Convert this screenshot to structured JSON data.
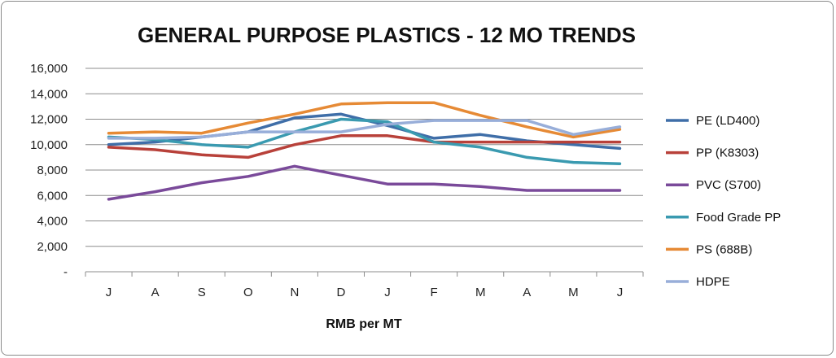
{
  "chart_data": {
    "type": "line",
    "title": "GENERAL PURPOSE PLASTICS - 12 MO TRENDS",
    "xlabel": "RMB per MT",
    "ylabel": "",
    "categories": [
      "J",
      "A",
      "S",
      "O",
      "N",
      "D",
      "J",
      "F",
      "M",
      "A",
      "M",
      "J"
    ],
    "ylim": [
      0,
      16000
    ],
    "yticks": [
      0,
      2000,
      4000,
      6000,
      8000,
      10000,
      12000,
      14000,
      16000
    ],
    "ytick_labels": [
      "-",
      "2,000",
      "4,000",
      "6,000",
      "8,000",
      "10,000",
      "12,000",
      "14,000",
      "16,000"
    ],
    "grid": true,
    "legend_position": "right",
    "series": [
      {
        "name": "PE (LD400)",
        "color": "#3f6ea8",
        "values": [
          10000,
          10200,
          10600,
          11000,
          12100,
          12400,
          11500,
          10500,
          10800,
          10300,
          10000,
          9700
        ]
      },
      {
        "name": "PP (K8303)",
        "color": "#b8413a",
        "values": [
          9800,
          9600,
          9200,
          9000,
          10000,
          10700,
          10700,
          10200,
          10200,
          10200,
          10200,
          10200
        ]
      },
      {
        "name": "PVC (S700)",
        "color": "#7a4a9a",
        "values": [
          5700,
          6300,
          7000,
          7500,
          8300,
          7600,
          6900,
          6900,
          6700,
          6400,
          6400,
          6400
        ]
      },
      {
        "name": "Food Grade PP",
        "color": "#3a9ab0",
        "values": [
          10600,
          10400,
          10000,
          9800,
          11000,
          12000,
          11800,
          10200,
          9800,
          9000,
          8600,
          8500
        ]
      },
      {
        "name": "PS (688B)",
        "color": "#e68a35",
        "values": [
          10900,
          11000,
          10900,
          11700,
          12400,
          13200,
          13300,
          13300,
          12300,
          11400,
          10600,
          11200
        ]
      },
      {
        "name": "HDPE",
        "color": "#98aed9",
        "values": [
          10500,
          10500,
          10600,
          11000,
          11000,
          11000,
          11600,
          11900,
          11900,
          11900,
          10800,
          11400
        ]
      }
    ]
  }
}
